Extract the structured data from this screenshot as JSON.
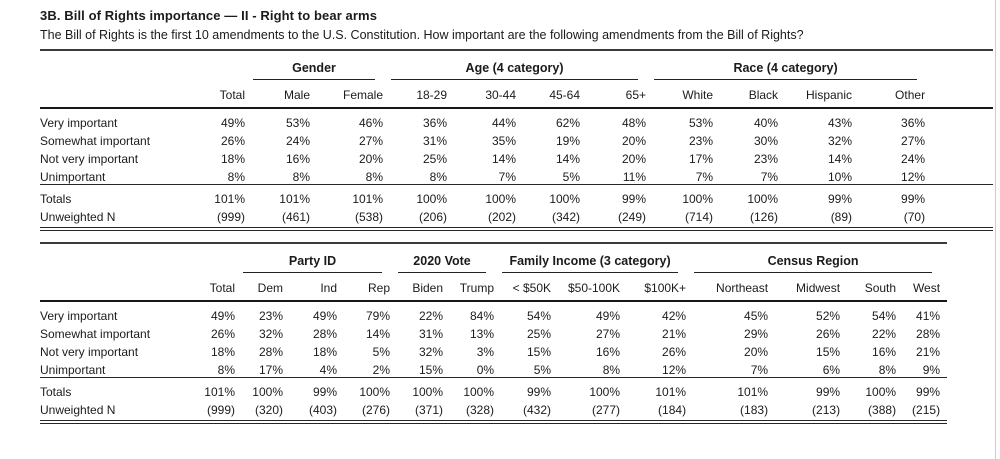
{
  "page": {
    "title": "3B. Bill of Rights importance — II - Right to bear arms",
    "subtitle": "The Bill of Rights is the first 10 amendments to the U.S. Constitution. How important are the following amendments from the Bill of Rights?"
  },
  "colors": {
    "text": "#1b1b1b",
    "rules": "#222222",
    "background": "#ffffff"
  },
  "tables": [
    {
      "name": "demographics",
      "groups": [
        {
          "label": "",
          "span": 1
        },
        {
          "label": "Gender",
          "span": 2
        },
        {
          "label": "Age (4 category)",
          "span": 4
        },
        {
          "label": "Race (4 category)",
          "span": 4
        }
      ],
      "columns": [
        "Total",
        "Male",
        "Female",
        "18-29",
        "30-44",
        "45-64",
        "65+",
        "White",
        "Black",
        "Hispanic",
        "Other"
      ],
      "rows": [
        {
          "label": "Very important",
          "values": [
            "49%",
            "53%",
            "46%",
            "36%",
            "44%",
            "62%",
            "48%",
            "53%",
            "40%",
            "43%",
            "36%"
          ]
        },
        {
          "label": "Somewhat important",
          "values": [
            "26%",
            "24%",
            "27%",
            "31%",
            "35%",
            "19%",
            "20%",
            "23%",
            "30%",
            "32%",
            "27%"
          ]
        },
        {
          "label": "Not very important",
          "values": [
            "18%",
            "16%",
            "20%",
            "25%",
            "14%",
            "14%",
            "20%",
            "17%",
            "23%",
            "14%",
            "24%"
          ]
        },
        {
          "label": "Unimportant",
          "values": [
            "8%",
            "8%",
            "8%",
            "8%",
            "7%",
            "5%",
            "11%",
            "7%",
            "7%",
            "10%",
            "12%"
          ]
        }
      ],
      "summary_rows": [
        {
          "label": "Totals",
          "values": [
            "101%",
            "101%",
            "101%",
            "100%",
            "100%",
            "100%",
            "99%",
            "100%",
            "100%",
            "99%",
            "99%"
          ]
        },
        {
          "label": "Unweighted N",
          "values": [
            "(999)",
            "(461)",
            "(538)",
            "(206)",
            "(202)",
            "(342)",
            "(249)",
            "(714)",
            "(126)",
            "(89)",
            "(70)"
          ]
        }
      ]
    },
    {
      "name": "politics-income-region",
      "groups": [
        {
          "label": "",
          "span": 1
        },
        {
          "label": "Party ID",
          "span": 3
        },
        {
          "label": "2020 Vote",
          "span": 2
        },
        {
          "label": "Family Income (3 category)",
          "span": 3
        },
        {
          "label": "Census Region",
          "span": 4
        }
      ],
      "columns": [
        "Total",
        "Dem",
        "Ind",
        "Rep",
        "Biden",
        "Trump",
        "< $50K",
        "$50-100K",
        "$100K+",
        "Northeast",
        "Midwest",
        "South",
        "West"
      ],
      "rows": [
        {
          "label": "Very important",
          "values": [
            "49%",
            "23%",
            "49%",
            "79%",
            "22%",
            "84%",
            "54%",
            "49%",
            "42%",
            "45%",
            "52%",
            "54%",
            "41%"
          ]
        },
        {
          "label": "Somewhat important",
          "values": [
            "26%",
            "32%",
            "28%",
            "14%",
            "31%",
            "13%",
            "25%",
            "27%",
            "21%",
            "29%",
            "26%",
            "22%",
            "28%"
          ]
        },
        {
          "label": "Not very important",
          "values": [
            "18%",
            "28%",
            "18%",
            "5%",
            "32%",
            "3%",
            "15%",
            "16%",
            "26%",
            "20%",
            "15%",
            "16%",
            "21%"
          ]
        },
        {
          "label": "Unimportant",
          "values": [
            "8%",
            "17%",
            "4%",
            "2%",
            "15%",
            "0%",
            "5%",
            "8%",
            "12%",
            "7%",
            "6%",
            "8%",
            "9%"
          ]
        }
      ],
      "summary_rows": [
        {
          "label": "Totals",
          "values": [
            "101%",
            "100%",
            "99%",
            "100%",
            "100%",
            "100%",
            "99%",
            "100%",
            "101%",
            "101%",
            "99%",
            "100%",
            "99%"
          ]
        },
        {
          "label": "Unweighted N",
          "values": [
            "(999)",
            "(320)",
            "(403)",
            "(276)",
            "(371)",
            "(328)",
            "(432)",
            "(277)",
            "(184)",
            "(183)",
            "(213)",
            "(388)",
            "(215)"
          ]
        }
      ]
    }
  ]
}
